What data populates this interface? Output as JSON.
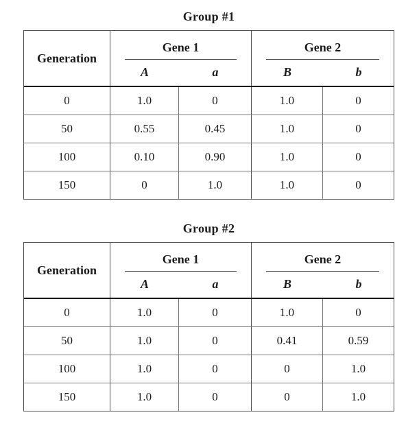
{
  "document": {
    "background": "#ffffff",
    "text_color": "#1c1c1c",
    "thin_line_color": "#777777",
    "heavy_line_color": "#1a1a1a"
  },
  "tables": [
    {
      "title": "Group #1",
      "generation_header": "Generation",
      "gene_groups": [
        {
          "label": "Gene 1",
          "alleles": [
            "A",
            "a"
          ]
        },
        {
          "label": "Gene 2",
          "alleles": [
            "B",
            "b"
          ]
        }
      ],
      "rows": [
        {
          "generation": "0",
          "values": [
            "1.0",
            "0",
            "1.0",
            "0"
          ]
        },
        {
          "generation": "50",
          "values": [
            "0.55",
            "0.45",
            "1.0",
            "0"
          ]
        },
        {
          "generation": "100",
          "values": [
            "0.10",
            "0.90",
            "1.0",
            "0"
          ]
        },
        {
          "generation": "150",
          "values": [
            "0",
            "1.0",
            "1.0",
            "0"
          ]
        }
      ]
    },
    {
      "title": "Group #2",
      "generation_header": "Generation",
      "gene_groups": [
        {
          "label": "Gene 1",
          "alleles": [
            "A",
            "a"
          ]
        },
        {
          "label": "Gene 2",
          "alleles": [
            "B",
            "b"
          ]
        }
      ],
      "rows": [
        {
          "generation": "0",
          "values": [
            "1.0",
            "0",
            "1.0",
            "0"
          ]
        },
        {
          "generation": "50",
          "values": [
            "1.0",
            "0",
            "0.41",
            "0.59"
          ]
        },
        {
          "generation": "100",
          "values": [
            "1.0",
            "0",
            "0",
            "1.0"
          ]
        },
        {
          "generation": "150",
          "values": [
            "1.0",
            "0",
            "0",
            "1.0"
          ]
        }
      ]
    }
  ]
}
